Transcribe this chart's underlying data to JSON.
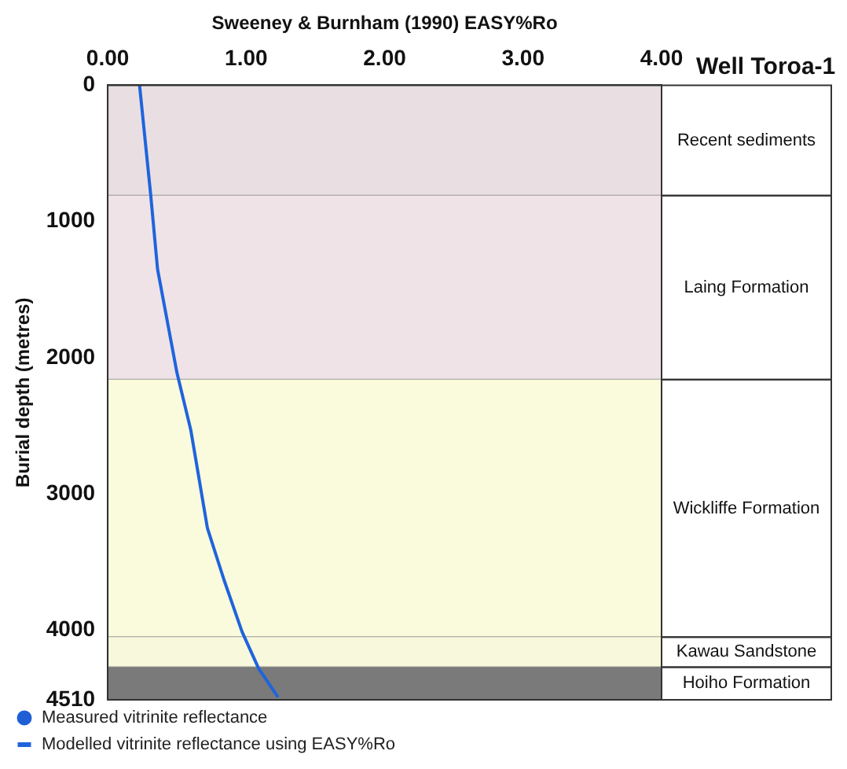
{
  "chart_data": {
    "type": "line",
    "xlabel": "Sweeney & Burnham (1990) EASY%Ro",
    "ylabel": "Burial depth (metres)",
    "annotations": [
      "Well Toroa-1"
    ],
    "xlim": [
      0,
      4
    ],
    "xticks": [
      {
        "value": 0,
        "label": "0.00"
      },
      {
        "value": 1,
        "label": "1.00"
      },
      {
        "value": 2,
        "label": "2.00"
      },
      {
        "value": 3,
        "label": "3.00"
      },
      {
        "value": 4,
        "label": "4.00"
      }
    ],
    "ylim": [
      4510,
      0
    ],
    "yticks": [
      0,
      1000,
      2000,
      3000,
      4000,
      4510
    ],
    "legend": "bottom",
    "grid": false,
    "bands": [
      {
        "axis": "y",
        "from": 0,
        "to": 810,
        "label": "Recent sediments",
        "color": "#e9dfe3"
      },
      {
        "axis": "y",
        "from": 810,
        "to": 2160,
        "label": "Laing Formation",
        "color": "#efe3e8"
      },
      {
        "axis": "y",
        "from": 2160,
        "to": 4050,
        "label": "Wickliffe Formation",
        "color": "#fafadc"
      },
      {
        "axis": "y",
        "from": 4050,
        "to": 4270,
        "label": "Kawau Sandstone",
        "color": "#f8f8dc"
      },
      {
        "axis": "y",
        "from": 4270,
        "to": 4510,
        "label": "Hoiho Formation",
        "color": "#7a7a7a"
      }
    ],
    "series": [
      {
        "name": "Measured vitrinite reflectance",
        "type": "scatter",
        "marker": "circle",
        "color": "#1f5fd6"
      },
      {
        "name": "Modelled vitrinite reflectance using EASY%Ro",
        "type": "line",
        "color": "#1f64dc",
        "marker": "none",
        "x": [
          0.23,
          0.31,
          0.36,
          0.5,
          0.6,
          0.72,
          0.84,
          0.97,
          1.09,
          1.23
        ],
        "values": [
          0,
          800,
          1350,
          2110,
          2530,
          3250,
          3630,
          4010,
          4280,
          4490
        ]
      }
    ]
  }
}
